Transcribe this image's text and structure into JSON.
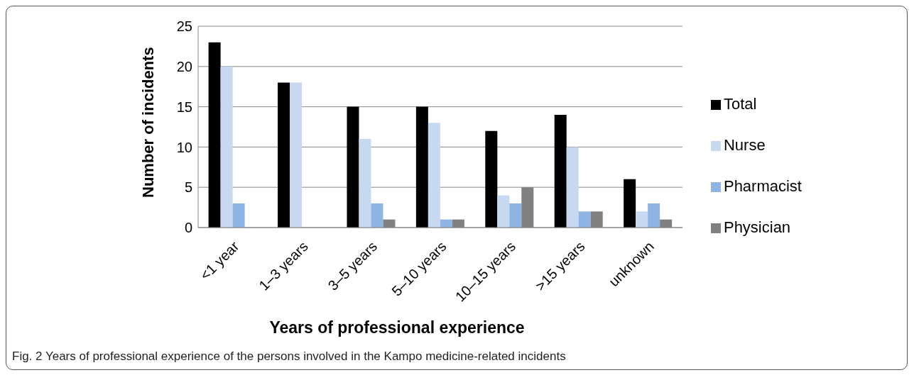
{
  "chart_data": {
    "type": "bar",
    "categories": [
      "<1 year",
      "1–3 years",
      "3–5 years",
      "5–10 years",
      "10–15 years",
      ">15 years",
      "unknown"
    ],
    "series": [
      {
        "name": "Total",
        "color": "#000000",
        "values": [
          23,
          18,
          15,
          15,
          12,
          14,
          6
        ]
      },
      {
        "name": "Nurse",
        "color": "#c6d9f1",
        "values": [
          20,
          18,
          11,
          13,
          4,
          10,
          2
        ]
      },
      {
        "name": "Pharmacist",
        "color": "#8eb4e3",
        "values": [
          3,
          0,
          3,
          1,
          3,
          2,
          3
        ]
      },
      {
        "name": "Physician",
        "color": "#808080",
        "values": [
          0,
          0,
          1,
          1,
          5,
          2,
          1
        ]
      }
    ],
    "xlabel": "Years of professional experience",
    "ylabel": "Number of incidents",
    "ylim": [
      0,
      25
    ],
    "yticks": [
      0,
      5,
      10,
      15,
      20,
      25
    ],
    "grid": "y",
    "legend": "right",
    "annotations": [
      "Fig. 2 Years of professional experience of the persons involved in the Kampo medicine-related incidents"
    ]
  }
}
